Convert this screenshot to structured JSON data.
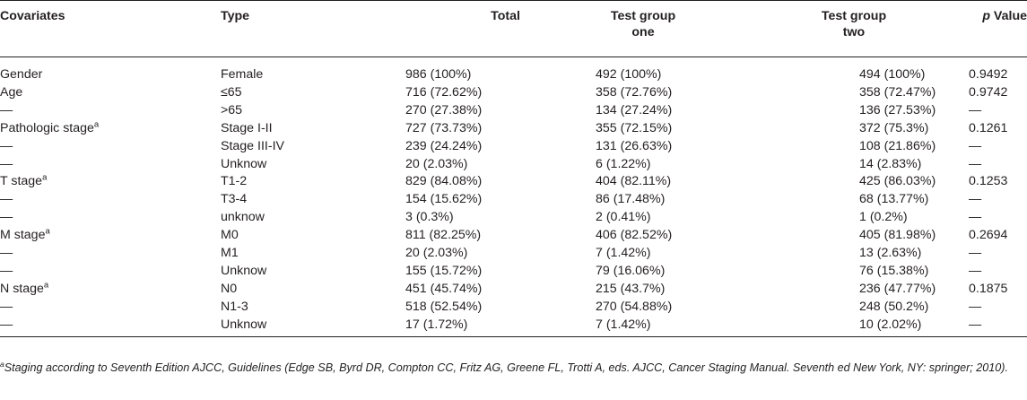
{
  "table": {
    "headers": {
      "covariates": "Covariates",
      "type": "Type",
      "total": "Total",
      "group_one_line1": "Test group",
      "group_one_line2": "one",
      "group_two_line1": "Test group",
      "group_two_line2": "two",
      "p_letter": "p",
      "p_rest": " Value"
    },
    "rows": [
      {
        "covariate": "Gender",
        "mark": "",
        "type": "Female",
        "total": "986 (100%)",
        "group_one": "492 (100%)",
        "group_two": "494 (100%)",
        "p_value": "0.9492"
      },
      {
        "covariate": "Age",
        "mark": "",
        "type": "≤65",
        "total": "716 (72.62%)",
        "group_one": "358 (72.76%)",
        "group_two": "358 (72.47%)",
        "p_value": "0.9742"
      },
      {
        "covariate": "—",
        "mark": "",
        "type": ">65",
        "total": "270 (27.38%)",
        "group_one": "134 (27.24%)",
        "group_two": "136 (27.53%)",
        "p_value": "—"
      },
      {
        "covariate": "Pathologic stage",
        "mark": "a",
        "type": "Stage I-II",
        "total": "727 (73.73%)",
        "group_one": "355 (72.15%)",
        "group_two": "372 (75.3%)",
        "p_value": "0.1261"
      },
      {
        "covariate": "—",
        "mark": "",
        "type": "Stage III-IV",
        "total": "239 (24.24%)",
        "group_one": "131 (26.63%)",
        "group_two": "108 (21.86%)",
        "p_value": "—"
      },
      {
        "covariate": "—",
        "mark": "",
        "type": "Unknow",
        "total": "20 (2.03%)",
        "group_one": "6 (1.22%)",
        "group_two": "14 (2.83%)",
        "p_value": "—"
      },
      {
        "covariate": "T stage",
        "mark": "a",
        "type": "T1-2",
        "total": "829 (84.08%)",
        "group_one": "404 (82.11%)",
        "group_two": "425 (86.03%)",
        "p_value": "0.1253"
      },
      {
        "covariate": "—",
        "mark": "",
        "type": "T3-4",
        "total": "154 (15.62%)",
        "group_one": "86 (17.48%)",
        "group_two": "68 (13.77%)",
        "p_value": "—"
      },
      {
        "covariate": "—",
        "mark": "",
        "type": "unknow",
        "total": "3 (0.3%)",
        "group_one": "2 (0.41%)",
        "group_two": "1 (0.2%)",
        "p_value": "—"
      },
      {
        "covariate": "M stage",
        "mark": "a",
        "type": "M0",
        "total": "811 (82.25%)",
        "group_one": "406 (82.52%)",
        "group_two": "405 (81.98%)",
        "p_value": "0.2694"
      },
      {
        "covariate": "—",
        "mark": "",
        "type": "M1",
        "total": "20 (2.03%)",
        "group_one": "7 (1.42%)",
        "group_two": "13 (2.63%)",
        "p_value": "—"
      },
      {
        "covariate": "—",
        "mark": "",
        "type": "Unknow",
        "total": "155 (15.72%)",
        "group_one": "79 (16.06%)",
        "group_two": "76 (15.38%)",
        "p_value": "—"
      },
      {
        "covariate": "N stage",
        "mark": "a",
        "type": "N0",
        "total": "451 (45.74%)",
        "group_one": "215 (43.7%)",
        "group_two": "236 (47.77%)",
        "p_value": "0.1875"
      },
      {
        "covariate": "—",
        "mark": "",
        "type": "N1-3",
        "total": "518 (52.54%)",
        "group_one": "270 (54.88%)",
        "group_two": "248 (50.2%)",
        "p_value": "—"
      },
      {
        "covariate": "—",
        "mark": "",
        "type": "Unknow",
        "total": "17 (1.72%)",
        "group_one": "7 (1.42%)",
        "group_two": "10 (2.02%)",
        "p_value": "—"
      }
    ]
  },
  "footnote": {
    "mark": "a",
    "text": "Staging according to Seventh Edition AJCC, Guidelines (Edge SB, Byrd DR, Compton CC, Fritz AG, Greene FL, Trotti A, eds. AJCC, Cancer Staging Manual. Seventh ed New York, NY: springer; 2010)."
  }
}
